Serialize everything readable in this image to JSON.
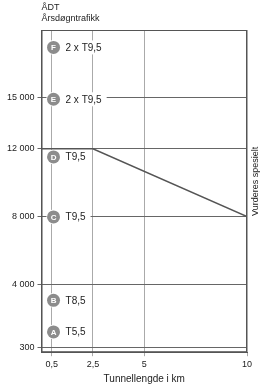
{
  "chart_data": {
    "type": "line",
    "y_label": [
      "ÅDT",
      "Årsdøgntrafikk"
    ],
    "x_label": "Tunnellengde i km",
    "x": [
      0,
      2.5,
      10
    ],
    "series": [
      {
        "color": "#555555",
        "values": [
          12000,
          12000,
          8000
        ]
      }
    ],
    "xlim": [
      0,
      10
    ],
    "xticks": [
      {
        "value": 0.5,
        "label": "0,5"
      },
      {
        "value": 2.5,
        "label": "2,5"
      },
      5,
      10
    ],
    "ylim": [
      0,
      19000
    ],
    "yticks": [
      300,
      {
        "value": 4000,
        "label": "4 000"
      },
      {
        "value": 8000,
        "label": "8 000"
      },
      {
        "value": 12000,
        "label": "12 000"
      },
      {
        "value": 15000,
        "label": "15 000"
      }
    ],
    "grid": true,
    "legend": false,
    "classes": [
      {
        "label": "A",
        "text": "T5,5"
      },
      {
        "label": "B",
        "text": "T8,5"
      },
      {
        "label": "C",
        "text": "T9,5"
      },
      {
        "label": "D",
        "text": "T9,5"
      },
      {
        "label": "E",
        "text": "2 x T9,5"
      },
      {
        "label": "F",
        "text": "2 x T9,5"
      }
    ],
    "annotations": [
      "Vurderes spesielt"
    ]
  }
}
